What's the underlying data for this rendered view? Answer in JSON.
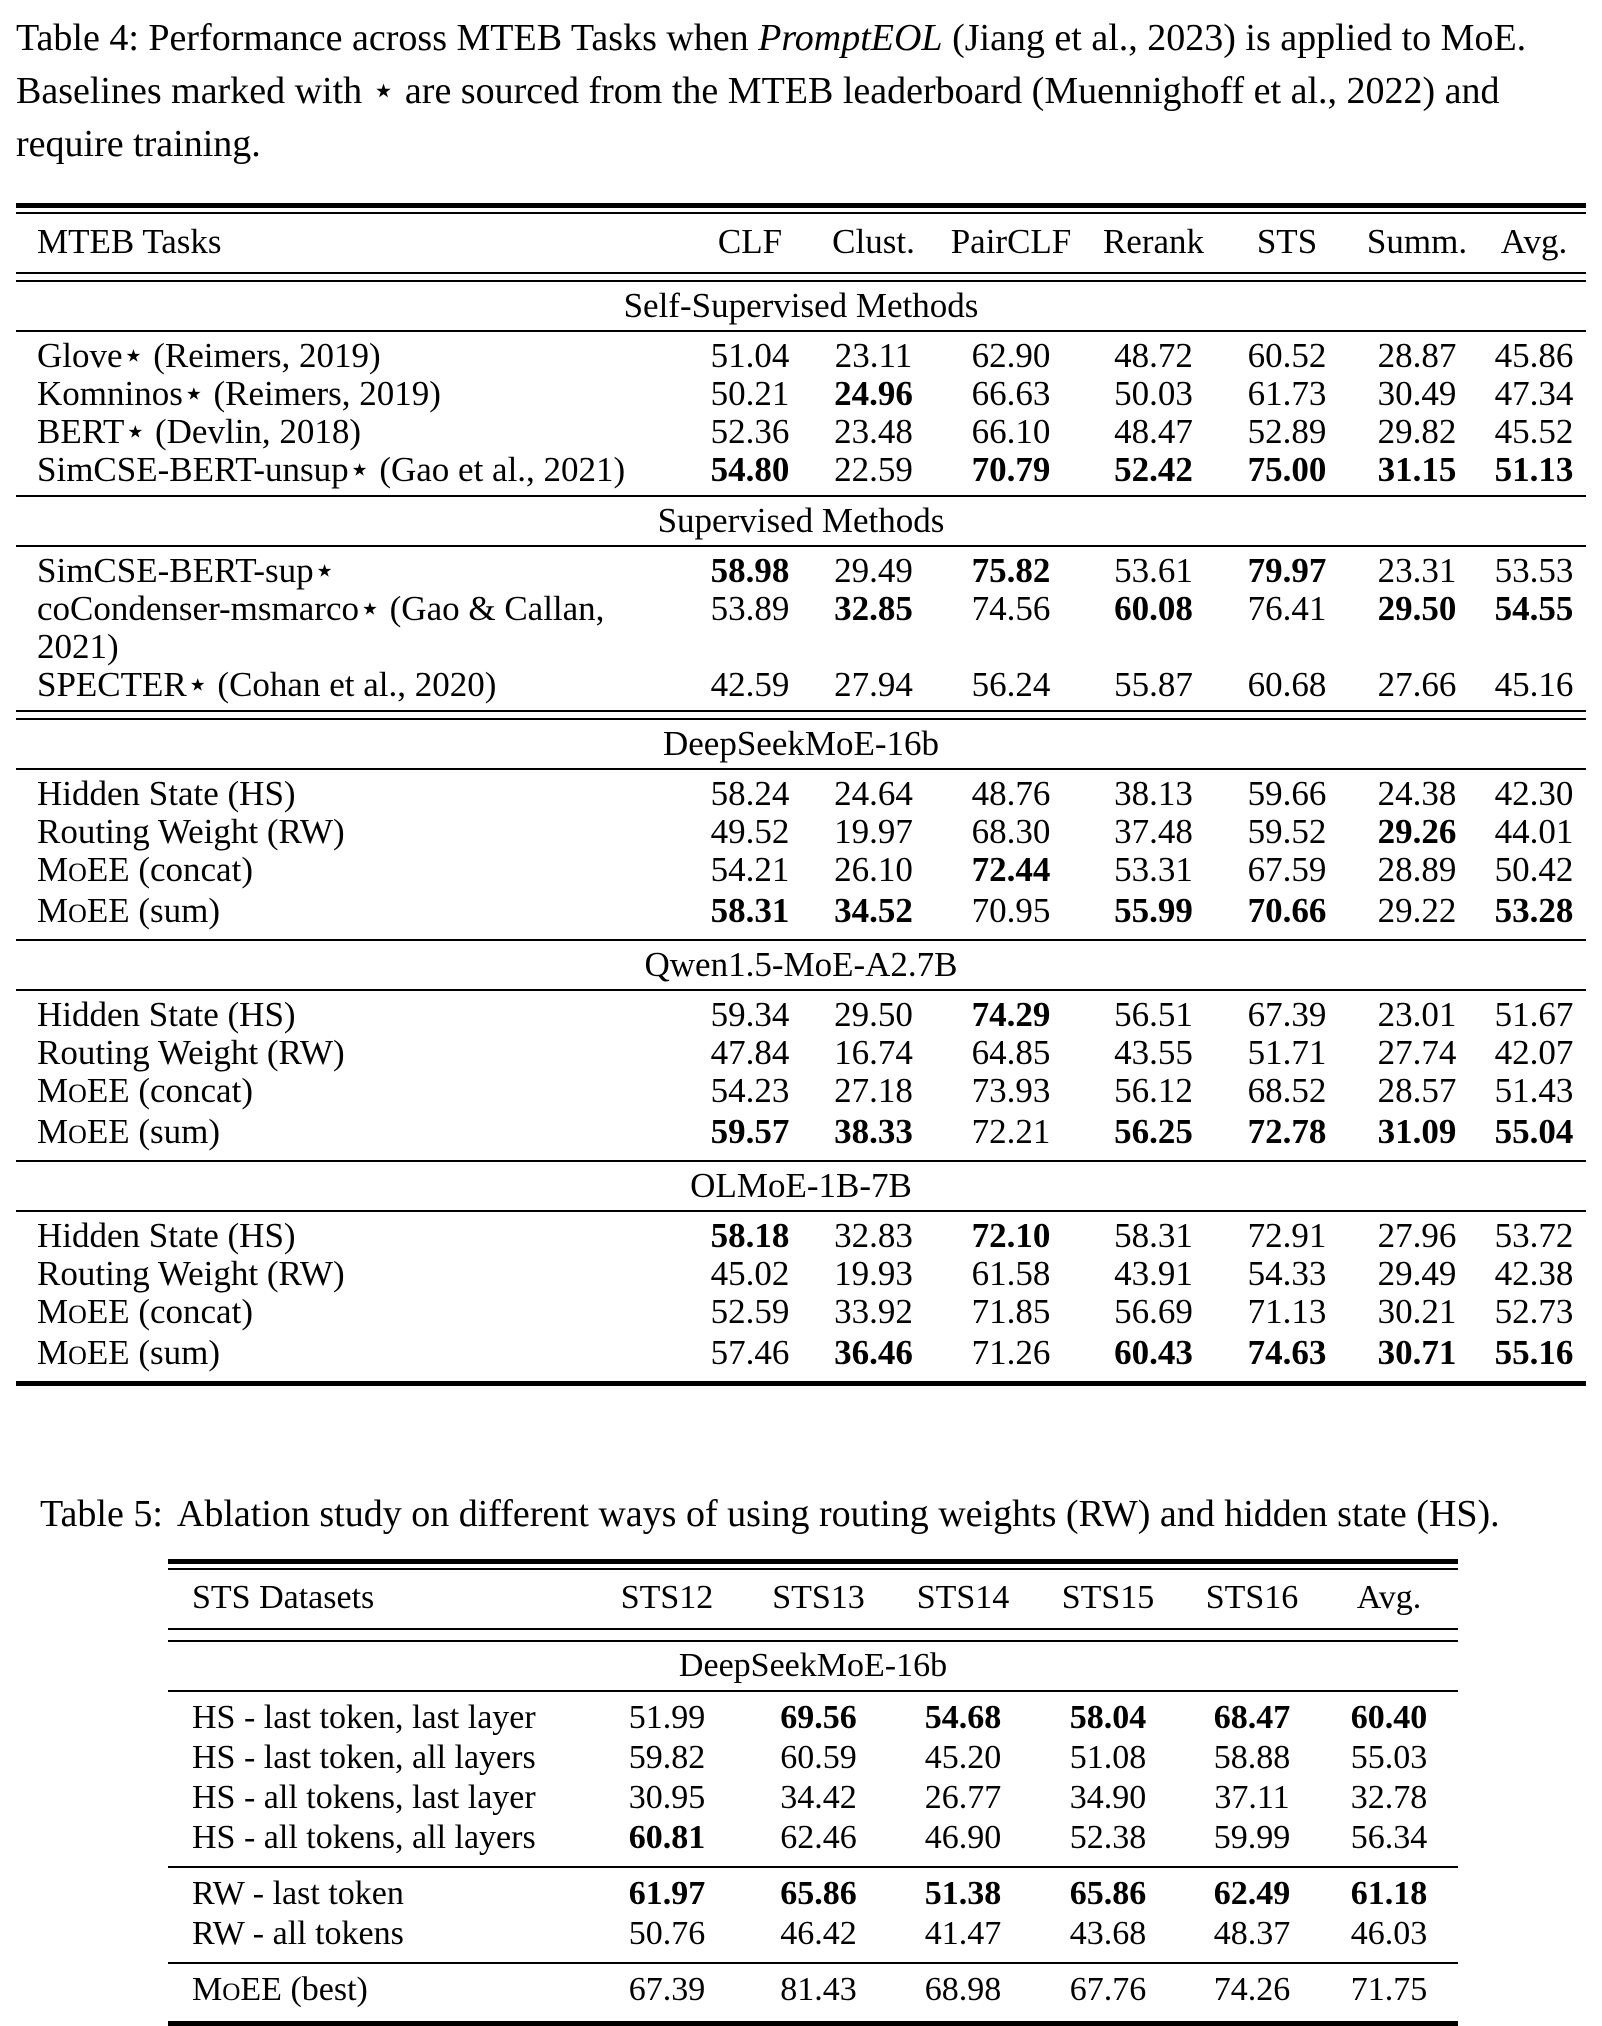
{
  "table4": {
    "caption": {
      "line1_pre": "Table 4: Performance across MTEB Tasks when ",
      "line1_italic": "PromptEOL",
      "line1_post": " (Jiang et al., 2023) is applied to MoE.",
      "line2": "Baselines marked with ⋆ are sourced from the MTEB leaderboard (Muennighoff et al., 2022) and",
      "line3": "require training."
    },
    "columns": [
      "MTEB Tasks",
      "CLF",
      "Clust.",
      "PairCLF",
      "Rerank",
      "STS",
      "Summ.",
      "Avg."
    ],
    "sections": [
      {
        "title": "Self-Supervised Methods",
        "after_rule": "thin",
        "rows": [
          {
            "label": "Glove⋆ (Reimers, 2019)",
            "values": [
              "51.04",
              "23.11",
              "62.90",
              "48.72",
              "60.52",
              "28.87",
              "45.86"
            ],
            "bold": [
              0,
              0,
              0,
              0,
              0,
              0,
              0
            ]
          },
          {
            "label": "Komninos⋆ (Reimers, 2019)",
            "values": [
              "50.21",
              "24.96",
              "66.63",
              "50.03",
              "61.73",
              "30.49",
              "47.34"
            ],
            "bold": [
              0,
              1,
              0,
              0,
              0,
              0,
              0
            ]
          },
          {
            "label": "BERT⋆ (Devlin, 2018)",
            "values": [
              "52.36",
              "23.48",
              "66.10",
              "48.47",
              "52.89",
              "29.82",
              "45.52"
            ],
            "bold": [
              0,
              0,
              0,
              0,
              0,
              0,
              0
            ]
          },
          {
            "label": "SimCSE-BERT-unsup⋆ (Gao et al., 2021)",
            "values": [
              "54.80",
              "22.59",
              "70.79",
              "52.42",
              "75.00",
              "31.15",
              "51.13"
            ],
            "bold": [
              1,
              0,
              1,
              1,
              1,
              1,
              1
            ]
          }
        ]
      },
      {
        "title": "Supervised Methods",
        "after_rule": "dbl",
        "rows": [
          {
            "label": "SimCSE-BERT-sup⋆",
            "values": [
              "58.98",
              "29.49",
              "75.82",
              "53.61",
              "79.97",
              "23.31",
              "53.53"
            ],
            "bold": [
              1,
              0,
              1,
              0,
              1,
              0,
              0
            ]
          },
          {
            "label": "coCondenser-msmarco⋆ (Gao & Callan, 2021)",
            "values": [
              "53.89",
              "32.85",
              "74.56",
              "60.08",
              "76.41",
              "29.50",
              "54.55"
            ],
            "bold": [
              0,
              1,
              0,
              1,
              0,
              1,
              1
            ]
          },
          {
            "label": "SPECTER⋆ (Cohan et al., 2020)",
            "values": [
              "42.59",
              "27.94",
              "56.24",
              "55.87",
              "60.68",
              "27.66",
              "45.16"
            ],
            "bold": [
              0,
              0,
              0,
              0,
              0,
              0,
              0
            ]
          }
        ]
      },
      {
        "title": "DeepSeekMoE-16b",
        "after_rule": "thin",
        "rows": [
          {
            "label": "Hidden State (HS)",
            "values": [
              "58.24",
              "24.64",
              "48.76",
              "38.13",
              "59.66",
              "24.38",
              "42.30"
            ],
            "bold": [
              0,
              0,
              0,
              0,
              0,
              0,
              0
            ]
          },
          {
            "label": "Routing Weight (RW)",
            "values": [
              "49.52",
              "19.97",
              "68.30",
              "37.48",
              "59.52",
              "29.26",
              "44.01"
            ],
            "bold": [
              0,
              0,
              0,
              0,
              0,
              1,
              0
            ]
          },
          {
            "label": "MoEE (concat)",
            "sc": true,
            "values": [
              "54.21",
              "26.10",
              "72.44",
              "53.31",
              "67.59",
              "28.89",
              "50.42"
            ],
            "bold": [
              0,
              0,
              1,
              0,
              0,
              0,
              0
            ]
          },
          {
            "label": "MoEE (sum)",
            "sc": true,
            "values": [
              "58.31",
              "34.52",
              "70.95",
              "55.99",
              "70.66",
              "29.22",
              "53.28"
            ],
            "bold": [
              1,
              1,
              0,
              1,
              1,
              0,
              1
            ]
          }
        ]
      },
      {
        "title": "Qwen1.5-MoE-A2.7B",
        "after_rule": "thin",
        "rows": [
          {
            "label": "Hidden State (HS)",
            "values": [
              "59.34",
              "29.50",
              "74.29",
              "56.51",
              "67.39",
              "23.01",
              "51.67"
            ],
            "bold": [
              0,
              0,
              1,
              0,
              0,
              0,
              0
            ]
          },
          {
            "label": "Routing Weight (RW)",
            "values": [
              "47.84",
              "16.74",
              "64.85",
              "43.55",
              "51.71",
              "27.74",
              "42.07"
            ],
            "bold": [
              0,
              0,
              0,
              0,
              0,
              0,
              0
            ]
          },
          {
            "label": "MoEE (concat)",
            "sc": true,
            "values": [
              "54.23",
              "27.18",
              "73.93",
              "56.12",
              "68.52",
              "28.57",
              "51.43"
            ],
            "bold": [
              0,
              0,
              0,
              0,
              0,
              0,
              0
            ]
          },
          {
            "label": "MoEE (sum)",
            "sc": true,
            "values": [
              "59.57",
              "38.33",
              "72.21",
              "56.25",
              "72.78",
              "31.09",
              "55.04"
            ],
            "bold": [
              1,
              1,
              0,
              1,
              1,
              1,
              1
            ]
          }
        ]
      },
      {
        "title": "OLMoE-1B-7B",
        "after_rule": "thick",
        "rows": [
          {
            "label": "Hidden State (HS)",
            "values": [
              "58.18",
              "32.83",
              "72.10",
              "58.31",
              "72.91",
              "27.96",
              "53.72"
            ],
            "bold": [
              1,
              0,
              1,
              0,
              0,
              0,
              0
            ]
          },
          {
            "label": "Routing Weight (RW)",
            "values": [
              "45.02",
              "19.93",
              "61.58",
              "43.91",
              "54.33",
              "29.49",
              "42.38"
            ],
            "bold": [
              0,
              0,
              0,
              0,
              0,
              0,
              0
            ]
          },
          {
            "label": "MoEE (concat)",
            "sc": true,
            "values": [
              "52.59",
              "33.92",
              "71.85",
              "56.69",
              "71.13",
              "30.21",
              "52.73"
            ],
            "bold": [
              0,
              0,
              0,
              0,
              0,
              0,
              0
            ]
          },
          {
            "label": "MoEE (sum)",
            "sc": true,
            "values": [
              "57.46",
              "36.46",
              "71.26",
              "60.43",
              "74.63",
              "30.71",
              "55.16"
            ],
            "bold": [
              0,
              1,
              0,
              1,
              1,
              1,
              1
            ]
          }
        ]
      }
    ]
  },
  "table5": {
    "caption": {
      "label": "Table 5:",
      "text": "Ablation study on different ways of using routing weights (RW) and hidden state (HS)."
    },
    "columns": [
      "STS Datasets",
      "STS12",
      "STS13",
      "STS14",
      "STS15",
      "STS16",
      "Avg."
    ],
    "section_title": "DeepSeekMoE-16b",
    "groups": [
      {
        "after_rule": "thin",
        "rows": [
          {
            "label": "HS - last token, last layer",
            "values": [
              "51.99",
              "69.56",
              "54.68",
              "58.04",
              "68.47",
              "60.40"
            ],
            "bold": [
              0,
              1,
              1,
              1,
              1,
              1
            ]
          },
          {
            "label": "HS - last token, all layers",
            "values": [
              "59.82",
              "60.59",
              "45.20",
              "51.08",
              "58.88",
              "55.03"
            ],
            "bold": [
              0,
              0,
              0,
              0,
              0,
              0
            ]
          },
          {
            "label": "HS - all tokens, last layer",
            "values": [
              "30.95",
              "34.42",
              "26.77",
              "34.90",
              "37.11",
              "32.78"
            ],
            "bold": [
              0,
              0,
              0,
              0,
              0,
              0
            ]
          },
          {
            "label": "HS - all tokens, all layers",
            "values": [
              "60.81",
              "62.46",
              "46.90",
              "52.38",
              "59.99",
              "56.34"
            ],
            "bold": [
              1,
              0,
              0,
              0,
              0,
              0
            ]
          }
        ]
      },
      {
        "after_rule": "thin",
        "rows": [
          {
            "label": "RW - last token",
            "values": [
              "61.97",
              "65.86",
              "51.38",
              "65.86",
              "62.49",
              "61.18"
            ],
            "bold": [
              1,
              1,
              1,
              1,
              1,
              1
            ]
          },
          {
            "label": "RW - all tokens",
            "values": [
              "50.76",
              "46.42",
              "41.47",
              "43.68",
              "48.37",
              "46.03"
            ],
            "bold": [
              0,
              0,
              0,
              0,
              0,
              0
            ]
          }
        ]
      },
      {
        "after_rule": "thick",
        "rows": [
          {
            "label": "MoEE (best)",
            "sc": true,
            "values": [
              "67.39",
              "81.43",
              "68.98",
              "67.76",
              "74.26",
              "71.75"
            ],
            "bold": [
              0,
              0,
              0,
              0,
              0,
              0
            ]
          }
        ]
      }
    ]
  }
}
